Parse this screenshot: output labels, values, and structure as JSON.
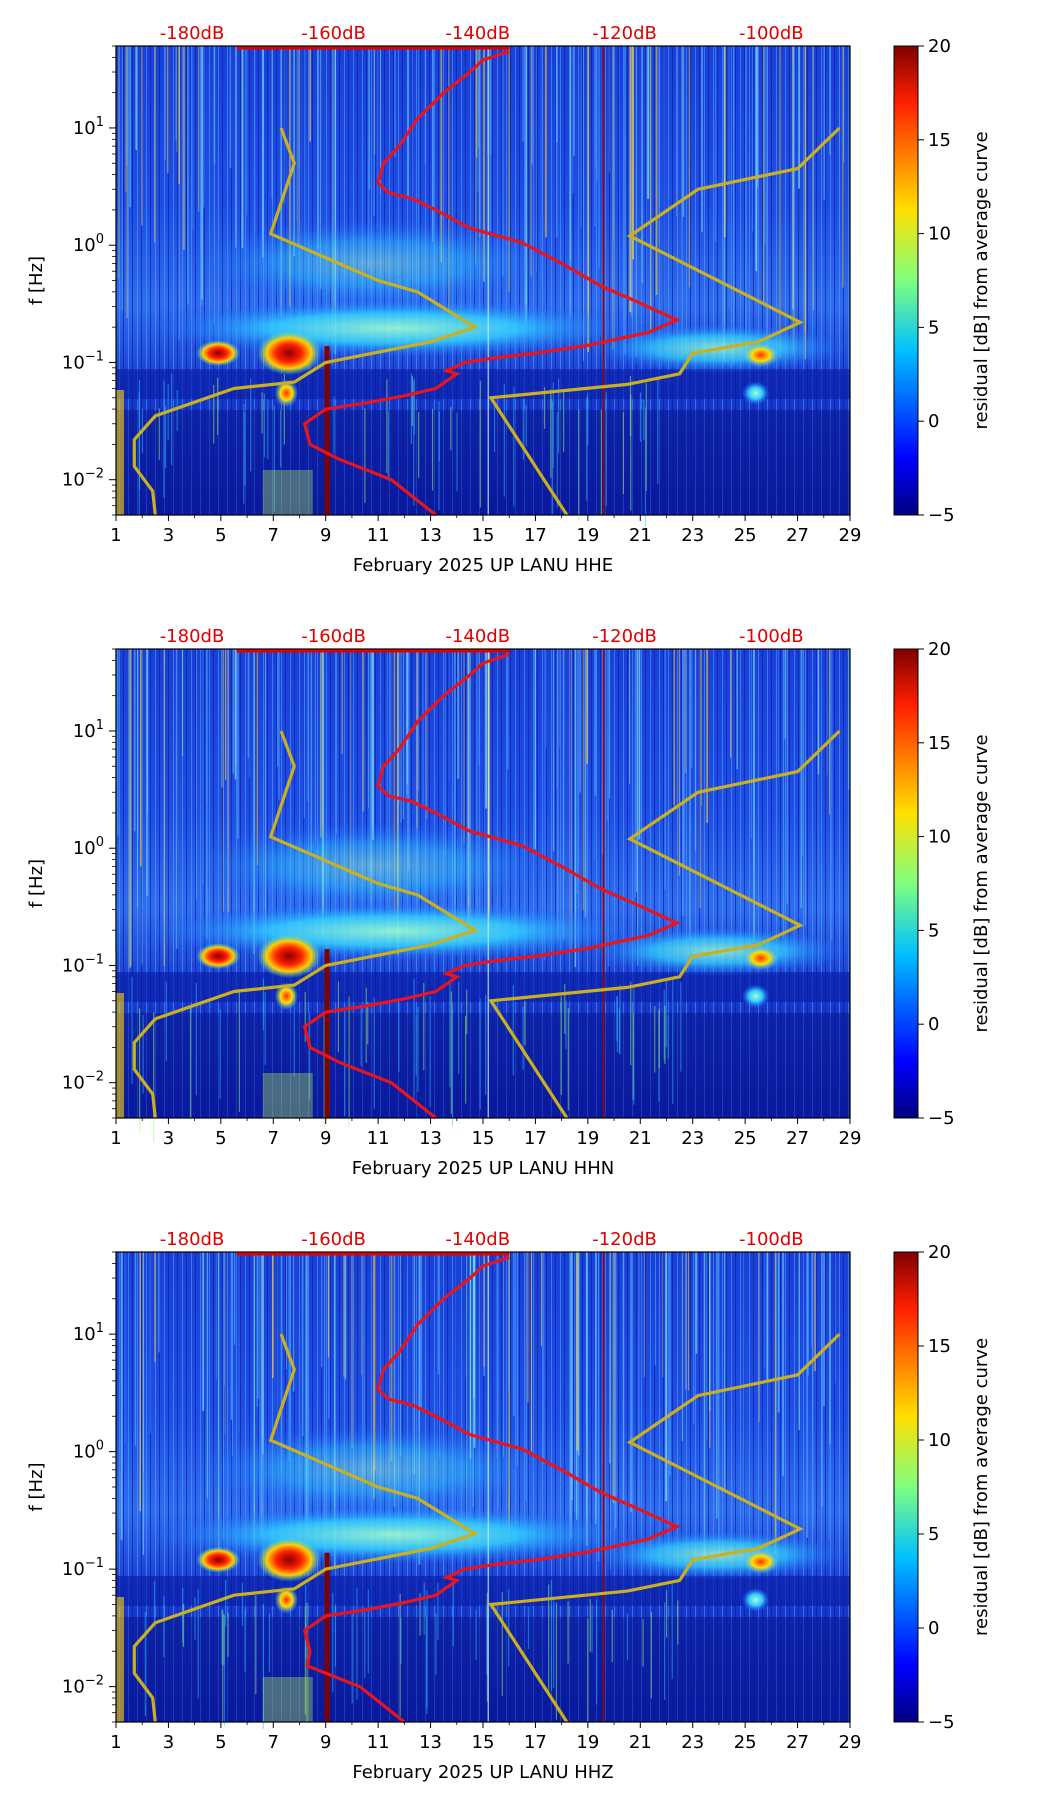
{
  "chart_data": [
    {
      "type": "heatmap",
      "xlabel": "February 2025 UP LANU  HHE",
      "ylabel": "f [Hz]",
      "x_ticks": [
        "1",
        "3",
        "5",
        "7",
        "9",
        "11",
        "13",
        "15",
        "17",
        "19",
        "21",
        "23",
        "25",
        "27",
        "29"
      ],
      "x_range": [
        1,
        29
      ],
      "y_ticks": [
        "10^-2",
        "10^-1",
        "10^0",
        "10^1"
      ],
      "y_range_hz": [
        0.005,
        50
      ],
      "top_ticks": [
        "-180dB",
        "-160dB",
        "-140dB",
        "-120dB",
        "-100dB"
      ],
      "colorbar": {
        "label": "residual [dB] from average curve",
        "ticks": [
          "20",
          "15",
          "10",
          "5",
          "0",
          "−5"
        ],
        "range": [
          -5,
          20
        ]
      }
    },
    {
      "type": "heatmap",
      "xlabel": "February 2025 UP LANU  HHN",
      "ylabel": "f [Hz]",
      "x_ticks": [
        "1",
        "3",
        "5",
        "7",
        "9",
        "11",
        "13",
        "15",
        "17",
        "19",
        "21",
        "23",
        "25",
        "27",
        "29"
      ],
      "x_range": [
        1,
        29
      ],
      "y_ticks": [
        "10^-2",
        "10^-1",
        "10^0",
        "10^1"
      ],
      "y_range_hz": [
        0.005,
        50
      ],
      "top_ticks": [
        "-180dB",
        "-160dB",
        "-140dB",
        "-120dB",
        "-100dB"
      ],
      "colorbar": {
        "label": "residual [dB] from average curve",
        "ticks": [
          "20",
          "15",
          "10",
          "5",
          "0",
          "−5"
        ],
        "range": [
          -5,
          20
        ]
      }
    },
    {
      "type": "heatmap",
      "xlabel": "February 2025 UP LANU  HHZ",
      "ylabel": "f [Hz]",
      "x_ticks": [
        "1",
        "3",
        "5",
        "7",
        "9",
        "11",
        "13",
        "15",
        "17",
        "19",
        "21",
        "23",
        "25",
        "27",
        "29"
      ],
      "x_range": [
        1,
        29
      ],
      "y_ticks": [
        "10^-2",
        "10^-1",
        "10^0",
        "10^1"
      ],
      "y_range_hz": [
        0.005,
        50
      ],
      "top_ticks": [
        "-180dB",
        "-160dB",
        "-140dB",
        "-120dB",
        "-100dB"
      ],
      "colorbar": {
        "label": "residual [dB] from average curve",
        "ticks": [
          "20",
          "15",
          "10",
          "5",
          "0",
          "−5"
        ],
        "range": [
          -5,
          20
        ]
      }
    }
  ]
}
